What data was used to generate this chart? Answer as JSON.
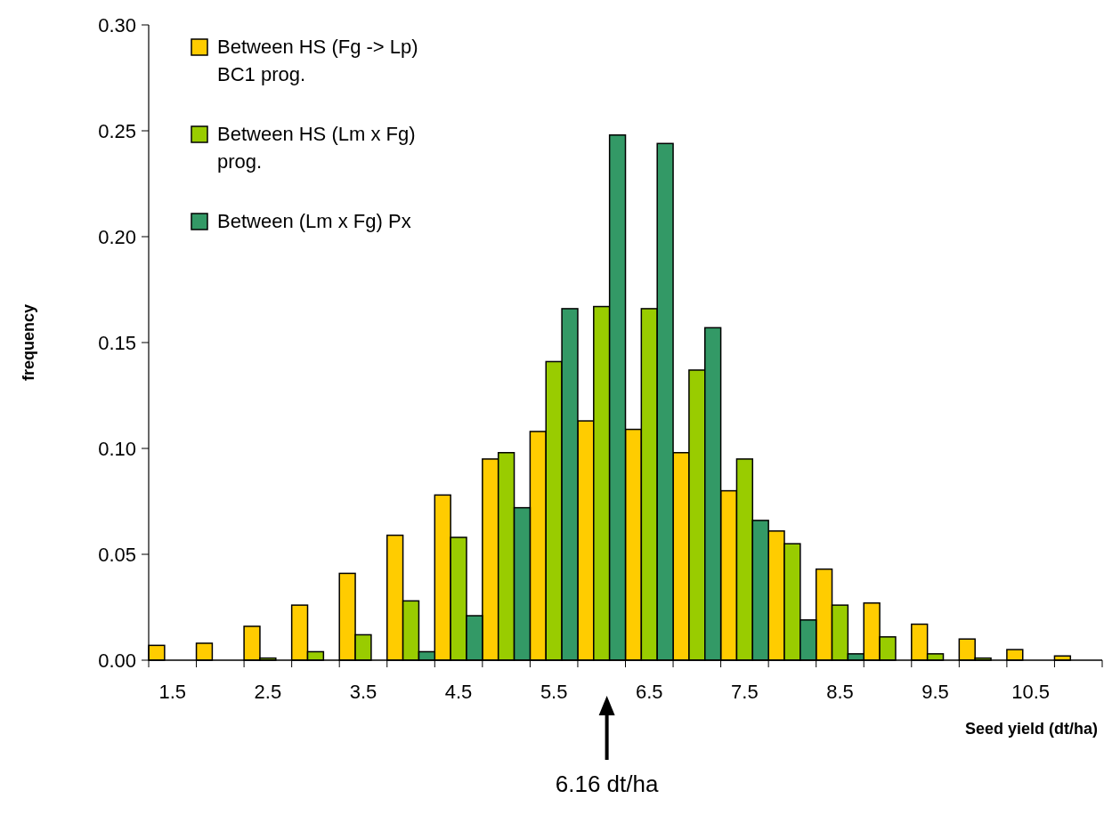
{
  "chart_data": {
    "type": "bar",
    "xlabel": "Seed yield (dt/ha)",
    "ylabel": "frequency",
    "categories": [
      "1.5",
      null,
      "2.5",
      null,
      "3.5",
      null,
      "4.5",
      null,
      "5.5",
      null,
      "6.5",
      null,
      "7.5",
      null,
      "8.5",
      null,
      "9.5",
      null,
      "10.5",
      null
    ],
    "series": [
      {
        "name": "Between HS (Fg -> Lp) BC1 prog.",
        "color": "#ffcc00",
        "values": [
          0.007,
          0.008,
          0.016,
          0.026,
          0.041,
          0.059,
          0.078,
          0.095,
          0.108,
          0.113,
          0.109,
          0.098,
          0.08,
          0.061,
          0.043,
          0.027,
          0.017,
          0.01,
          0.005,
          0.002
        ]
      },
      {
        "name": "Between HS (Lm x Fg) prog.",
        "color": "#99cc00",
        "values": [
          0,
          0,
          0.001,
          0.004,
          0.012,
          0.028,
          0.058,
          0.098,
          0.141,
          0.167,
          0.166,
          0.137,
          0.095,
          0.055,
          0.026,
          0.011,
          0.003,
          0.001,
          0,
          0
        ]
      },
      {
        "name": "Between (Lm x Fg) Px",
        "color": "#339966",
        "values": [
          0,
          0,
          0,
          0,
          0,
          0.004,
          0.021,
          0.072,
          0.166,
          0.248,
          0.244,
          0.157,
          0.066,
          0.019,
          0.003,
          0,
          0,
          0,
          0,
          0
        ]
      }
    ],
    "ylim": [
      0,
      0.3
    ],
    "yticks": [
      {
        "value": 0,
        "label": "0.00"
      },
      {
        "value": 0.05,
        "label": "0.05"
      },
      {
        "value": 0.1,
        "label": "0.10"
      },
      {
        "value": 0.15,
        "label": "0.15"
      },
      {
        "value": 0.2,
        "label": "0.20"
      },
      {
        "value": 0.25,
        "label": "0.25"
      },
      {
        "value": 0.3,
        "label": "0.30"
      }
    ],
    "grid": false,
    "legend": "top left",
    "annotations": [
      "6.16 dt/ha"
    ]
  }
}
